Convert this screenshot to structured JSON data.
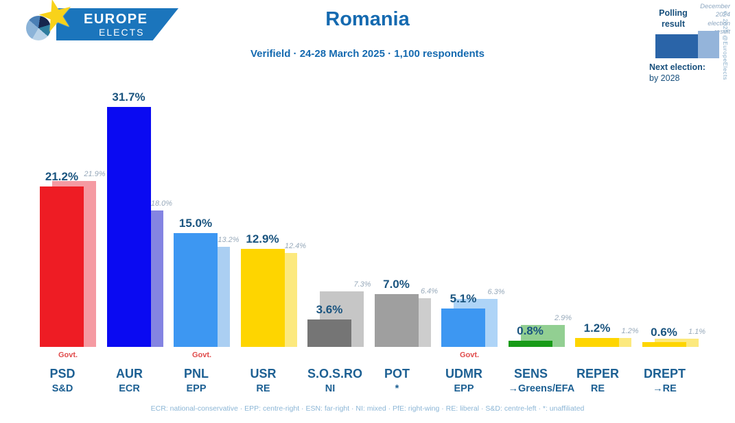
{
  "header": {
    "logo": {
      "line1": "EUROPE",
      "line2": "ELECTS"
    },
    "title": "Romania",
    "subtitle": "Verifield · 24-28 March 2025 · 1,100 respondents"
  },
  "legend": {
    "polling_label": "Polling result",
    "election_label": "December 2024 election result",
    "next_election_label": "Next election:",
    "next_election_value": "by 2028",
    "copyright": "© 2025 @EuropeElects"
  },
  "labels": {
    "govt": "Govt."
  },
  "footer": "ECR: national-conservative · EPP: centre-right · ESN: far-right · NI: mixed · PfE: right-wing · RE: liberal · S&D: centre-left · *: unaffiliated",
  "chart_data": {
    "type": "bar",
    "title": "Romania",
    "pollster": "Verifield",
    "fieldwork": "24-28 March 2025",
    "sample": "1,100 respondents",
    "unit": "%",
    "ylim": [
      0,
      33
    ],
    "grid": false,
    "legend_position": "top-right",
    "series": [
      {
        "name": "Polling result"
      },
      {
        "name": "December 2024 election result"
      }
    ],
    "parties": [
      {
        "party": "PSD",
        "group": "S&D",
        "govt": true,
        "polling": 21.2,
        "election": 21.9,
        "color": "#ee1c24",
        "color_light": "#f59aa2"
      },
      {
        "party": "AUR",
        "group": "ECR",
        "govt": false,
        "polling": 31.7,
        "election": 18.0,
        "color": "#0a0af2",
        "color_light": "#8484e2"
      },
      {
        "party": "PNL",
        "group": "EPP",
        "govt": true,
        "polling": 15.0,
        "election": 13.2,
        "color": "#3d97f2",
        "color_light": "#abcff2"
      },
      {
        "party": "USR",
        "group": "RE",
        "govt": false,
        "polling": 12.9,
        "election": 12.4,
        "color": "#fed500",
        "color_light": "#fce97e"
      },
      {
        "party": "S.O.S.RO",
        "group": "NI",
        "govt": false,
        "polling": 3.6,
        "election": 7.3,
        "color": "#757575",
        "color_light": "#c6c6c6"
      },
      {
        "party": "POT",
        "group": "*",
        "govt": false,
        "polling": 7.0,
        "election": 6.4,
        "color": "#9f9f9f",
        "color_light": "#cdcdcd"
      },
      {
        "party": "UDMR",
        "group": "EPP",
        "govt": true,
        "polling": 5.1,
        "election": 6.3,
        "color": "#3d97f2",
        "color_light": "#aed4f7"
      },
      {
        "party": "SENS",
        "group": "→Greens/EFA",
        "govt": false,
        "polling": 0.8,
        "election": 2.9,
        "color": "#189b18",
        "color_light": "#92cf92"
      },
      {
        "party": "REPER",
        "group": "RE",
        "govt": false,
        "polling": 1.2,
        "election": 1.2,
        "color": "#fed500",
        "color_light": "#fce97e"
      },
      {
        "party": "DREPT",
        "group": "→RE",
        "govt": false,
        "polling": 0.6,
        "election": 1.1,
        "color": "#fed500",
        "color_light": "#fce97e"
      }
    ]
  }
}
